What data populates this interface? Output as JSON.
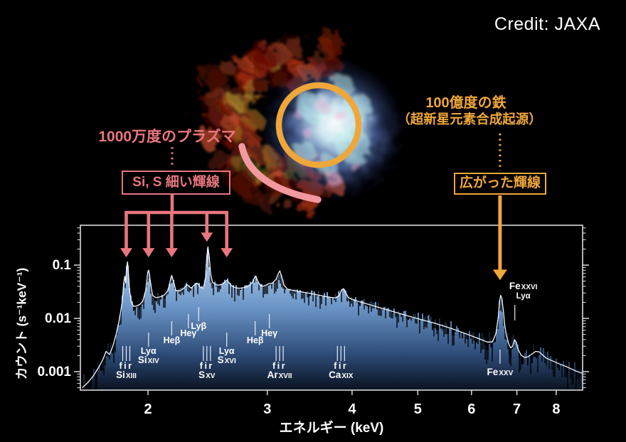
{
  "credit": "Credit: JAXA",
  "annotations": {
    "plasma": {
      "title": "1000万度のプラズマ",
      "box_label": "Si, S 細い輝線"
    },
    "iron": {
      "title": "100億度の鉄",
      "subtitle": "（超新星元素合成起源）",
      "box_label": "広がった輝線"
    }
  },
  "image": {
    "subject": "supernova-remnant-xray-false-color",
    "palette": {
      "shell_reds": [
        "#5c0a00",
        "#8f1c03",
        "#b53418",
        "#d9552e"
      ],
      "shell_greens": [
        "#6f9c2a",
        "#c9bc3a"
      ],
      "core_blue": "#6f8fd0",
      "core_white": "#ffffff",
      "core_cyan": "#bff2ee",
      "core_pink": "#f0b4d8"
    }
  },
  "colors": {
    "pink": "#e8767e",
    "pink_arc": "#f298a0",
    "orange": "#efa73a",
    "background": "#000000",
    "axis": "#d9d9d9",
    "text": "#ffffff",
    "model_line": "#f2f6ff",
    "error_bar": "#000000",
    "fill_top": "#e2eefb",
    "fill_upper": "#a9c9ea",
    "fill_mid": "#6a94c6",
    "fill_lower": "#2e4c78",
    "fill_bottom": "#0a1220"
  },
  "chart_data": {
    "type": "line",
    "title": "",
    "xlabel": "エネルギー (keV)",
    "ylabel": "カウント (s⁻¹keV⁻¹)",
    "xscale": "log",
    "yscale": "log",
    "xlim": [
      1.59,
      8.75
    ],
    "ylim": [
      0.00045,
      0.56
    ],
    "grid": false,
    "xticks": [
      2,
      3,
      4,
      5,
      6,
      7,
      8
    ],
    "yticks": [
      {
        "value": 0.1,
        "label": "0.1"
      },
      {
        "value": 0.01,
        "label": "0.01"
      },
      {
        "value": 0.001,
        "label": "0.001"
      }
    ],
    "series": [
      {
        "name": "best-fit-model",
        "points": [
          [
            1.6,
            0.0005
          ],
          [
            1.63,
            0.00062
          ],
          [
            1.66,
            0.00082
          ],
          [
            1.69,
            0.00118
          ],
          [
            1.715,
            0.00165
          ],
          [
            1.735,
            0.0024
          ],
          [
            1.755,
            0.0021
          ],
          [
            1.775,
            0.003
          ],
          [
            1.795,
            0.005
          ],
          [
            1.815,
            0.0095
          ],
          [
            1.832,
            0.02
          ],
          [
            1.843,
            0.048
          ],
          [
            1.849,
            0.062
          ],
          [
            1.855,
            0.046
          ],
          [
            1.86,
            0.09
          ],
          [
            1.866,
            0.115
          ],
          [
            1.872,
            0.07
          ],
          [
            1.879,
            0.034
          ],
          [
            1.89,
            0.02
          ],
          [
            1.905,
            0.0168
          ],
          [
            1.925,
            0.0172
          ],
          [
            1.945,
            0.0182
          ],
          [
            1.965,
            0.021
          ],
          [
            1.985,
            0.034
          ],
          [
            1.998,
            0.072
          ],
          [
            2.006,
            0.08
          ],
          [
            2.018,
            0.046
          ],
          [
            2.032,
            0.027
          ],
          [
            2.055,
            0.0245
          ],
          [
            2.08,
            0.0252
          ],
          [
            2.11,
            0.0268
          ],
          [
            2.14,
            0.033
          ],
          [
            2.158,
            0.052
          ],
          [
            2.168,
            0.064
          ],
          [
            2.18,
            0.05
          ],
          [
            2.2,
            0.033
          ],
          [
            2.23,
            0.033
          ],
          [
            2.26,
            0.037
          ],
          [
            2.285,
            0.043
          ],
          [
            2.3,
            0.04
          ],
          [
            2.315,
            0.037
          ],
          [
            2.34,
            0.042
          ],
          [
            2.358,
            0.046
          ],
          [
            2.372,
            0.044
          ],
          [
            2.39,
            0.0385
          ],
          [
            2.415,
            0.037
          ],
          [
            2.432,
            0.058
          ],
          [
            2.443,
            0.15
          ],
          [
            2.452,
            0.22
          ],
          [
            2.462,
            0.15
          ],
          [
            2.475,
            0.068
          ],
          [
            2.49,
            0.048
          ],
          [
            2.515,
            0.043
          ],
          [
            2.545,
            0.042
          ],
          [
            2.575,
            0.044
          ],
          [
            2.6,
            0.048
          ],
          [
            2.615,
            0.052
          ],
          [
            2.63,
            0.048
          ],
          [
            2.655,
            0.041
          ],
          [
            2.69,
            0.0375
          ],
          [
            2.73,
            0.0368
          ],
          [
            2.77,
            0.0378
          ],
          [
            2.81,
            0.04
          ],
          [
            2.85,
            0.0465
          ],
          [
            2.872,
            0.058
          ],
          [
            2.885,
            0.062
          ],
          [
            2.9,
            0.052
          ],
          [
            2.925,
            0.042
          ],
          [
            2.955,
            0.04
          ],
          [
            2.985,
            0.042
          ],
          [
            3.01,
            0.0445
          ],
          [
            3.05,
            0.046
          ],
          [
            3.09,
            0.054
          ],
          [
            3.115,
            0.07
          ],
          [
            3.13,
            0.078
          ],
          [
            3.15,
            0.06
          ],
          [
            3.175,
            0.042
          ],
          [
            3.21,
            0.0355
          ],
          [
            3.26,
            0.034
          ],
          [
            3.32,
            0.0325
          ],
          [
            3.4,
            0.0308
          ],
          [
            3.5,
            0.0288
          ],
          [
            3.6,
            0.0268
          ],
          [
            3.7,
            0.025
          ],
          [
            3.78,
            0.0242
          ],
          [
            3.83,
            0.0268
          ],
          [
            3.862,
            0.0345
          ],
          [
            3.885,
            0.036
          ],
          [
            3.91,
            0.031
          ],
          [
            3.95,
            0.0245
          ],
          [
            4.02,
            0.0222
          ],
          [
            4.12,
            0.0202
          ],
          [
            4.25,
            0.018
          ],
          [
            4.4,
            0.0158
          ],
          [
            4.55,
            0.014
          ],
          [
            4.72,
            0.0122
          ],
          [
            4.9,
            0.0106
          ],
          [
            5.1,
            0.0092
          ],
          [
            5.3,
            0.0081
          ],
          [
            5.5,
            0.007
          ],
          [
            5.7,
            0.006
          ],
          [
            5.9,
            0.0051
          ],
          [
            6.05,
            0.0045
          ],
          [
            6.2,
            0.004
          ],
          [
            6.33,
            0.0036
          ],
          [
            6.44,
            0.0036
          ],
          [
            6.52,
            0.0052
          ],
          [
            6.57,
            0.0105
          ],
          [
            6.6,
            0.021
          ],
          [
            6.625,
            0.027
          ],
          [
            6.65,
            0.024
          ],
          [
            6.685,
            0.014
          ],
          [
            6.72,
            0.0072
          ],
          [
            6.76,
            0.0046
          ],
          [
            6.8,
            0.0035
          ],
          [
            6.85,
            0.0028
          ],
          [
            6.9,
            0.003
          ],
          [
            6.945,
            0.004
          ],
          [
            6.98,
            0.0036
          ],
          [
            7.03,
            0.0026
          ],
          [
            7.1,
            0.00205
          ],
          [
            7.18,
            0.00185
          ],
          [
            7.27,
            0.0019
          ],
          [
            7.37,
            0.00215
          ],
          [
            7.46,
            0.0024
          ],
          [
            7.55,
            0.00235
          ],
          [
            7.64,
            0.00205
          ],
          [
            7.74,
            0.00178
          ],
          [
            7.85,
            0.00165
          ],
          [
            7.98,
            0.0015
          ],
          [
            8.12,
            0.00137
          ],
          [
            8.26,
            0.00126
          ],
          [
            8.4,
            0.00114
          ],
          [
            8.55,
            0.00103
          ],
          [
            8.68,
            0.00096
          ],
          [
            8.75,
            0.00093
          ]
        ]
      }
    ],
    "line_labels": [
      {
        "element": "Si",
        "ion": "XIII",
        "line": "fir",
        "energy": 1.858,
        "kind": "fir-triplet"
      },
      {
        "element": "Si",
        "ion": "XIV",
        "line": "Lyα",
        "energy": 2.004,
        "kind": "lya-elem"
      },
      {
        "line": "Heβ",
        "energy": 2.168,
        "kind": "tier1"
      },
      {
        "line": "Heγ",
        "energy": 2.294,
        "kind": "tier2"
      },
      {
        "line": "Lyβ",
        "energy": 2.376,
        "kind": "tier3"
      },
      {
        "element": "S",
        "ion": "XV",
        "line": "fir",
        "energy": 2.443,
        "kind": "fir-triplet"
      },
      {
        "element": "S",
        "ion": "XVI",
        "line": "Lyα",
        "energy": 2.613,
        "kind": "lya-elem"
      },
      {
        "line": "Heβ",
        "energy": 2.878,
        "kind": "tier1"
      },
      {
        "line": "Heγ",
        "energy": 3.02,
        "kind": "tier2"
      },
      {
        "element": "Ar",
        "ion": "XVII",
        "line": "fir",
        "energy": 3.128,
        "kind": "fir-triplet"
      },
      {
        "element": "Ca",
        "ion": "XIX",
        "line": "fir",
        "energy": 3.852,
        "kind": "fir-triplet"
      },
      {
        "element": "Fe",
        "ion": "XXV",
        "line": "",
        "energy": 6.61,
        "kind": "fe-below"
      },
      {
        "element": "Fe",
        "ion": "XXVI",
        "line": "Lyα",
        "energy": 6.95,
        "kind": "fe-above"
      }
    ],
    "pink_arrows": {
      "energies": [
        1.858,
        2.004,
        2.168,
        2.443,
        2.613
      ],
      "tip_counts": [
        0.14,
        0.14,
        0.14,
        0.275,
        0.14
      ]
    },
    "orange_arrow": {
      "energy": 6.61,
      "tip_count": 0.052
    }
  }
}
